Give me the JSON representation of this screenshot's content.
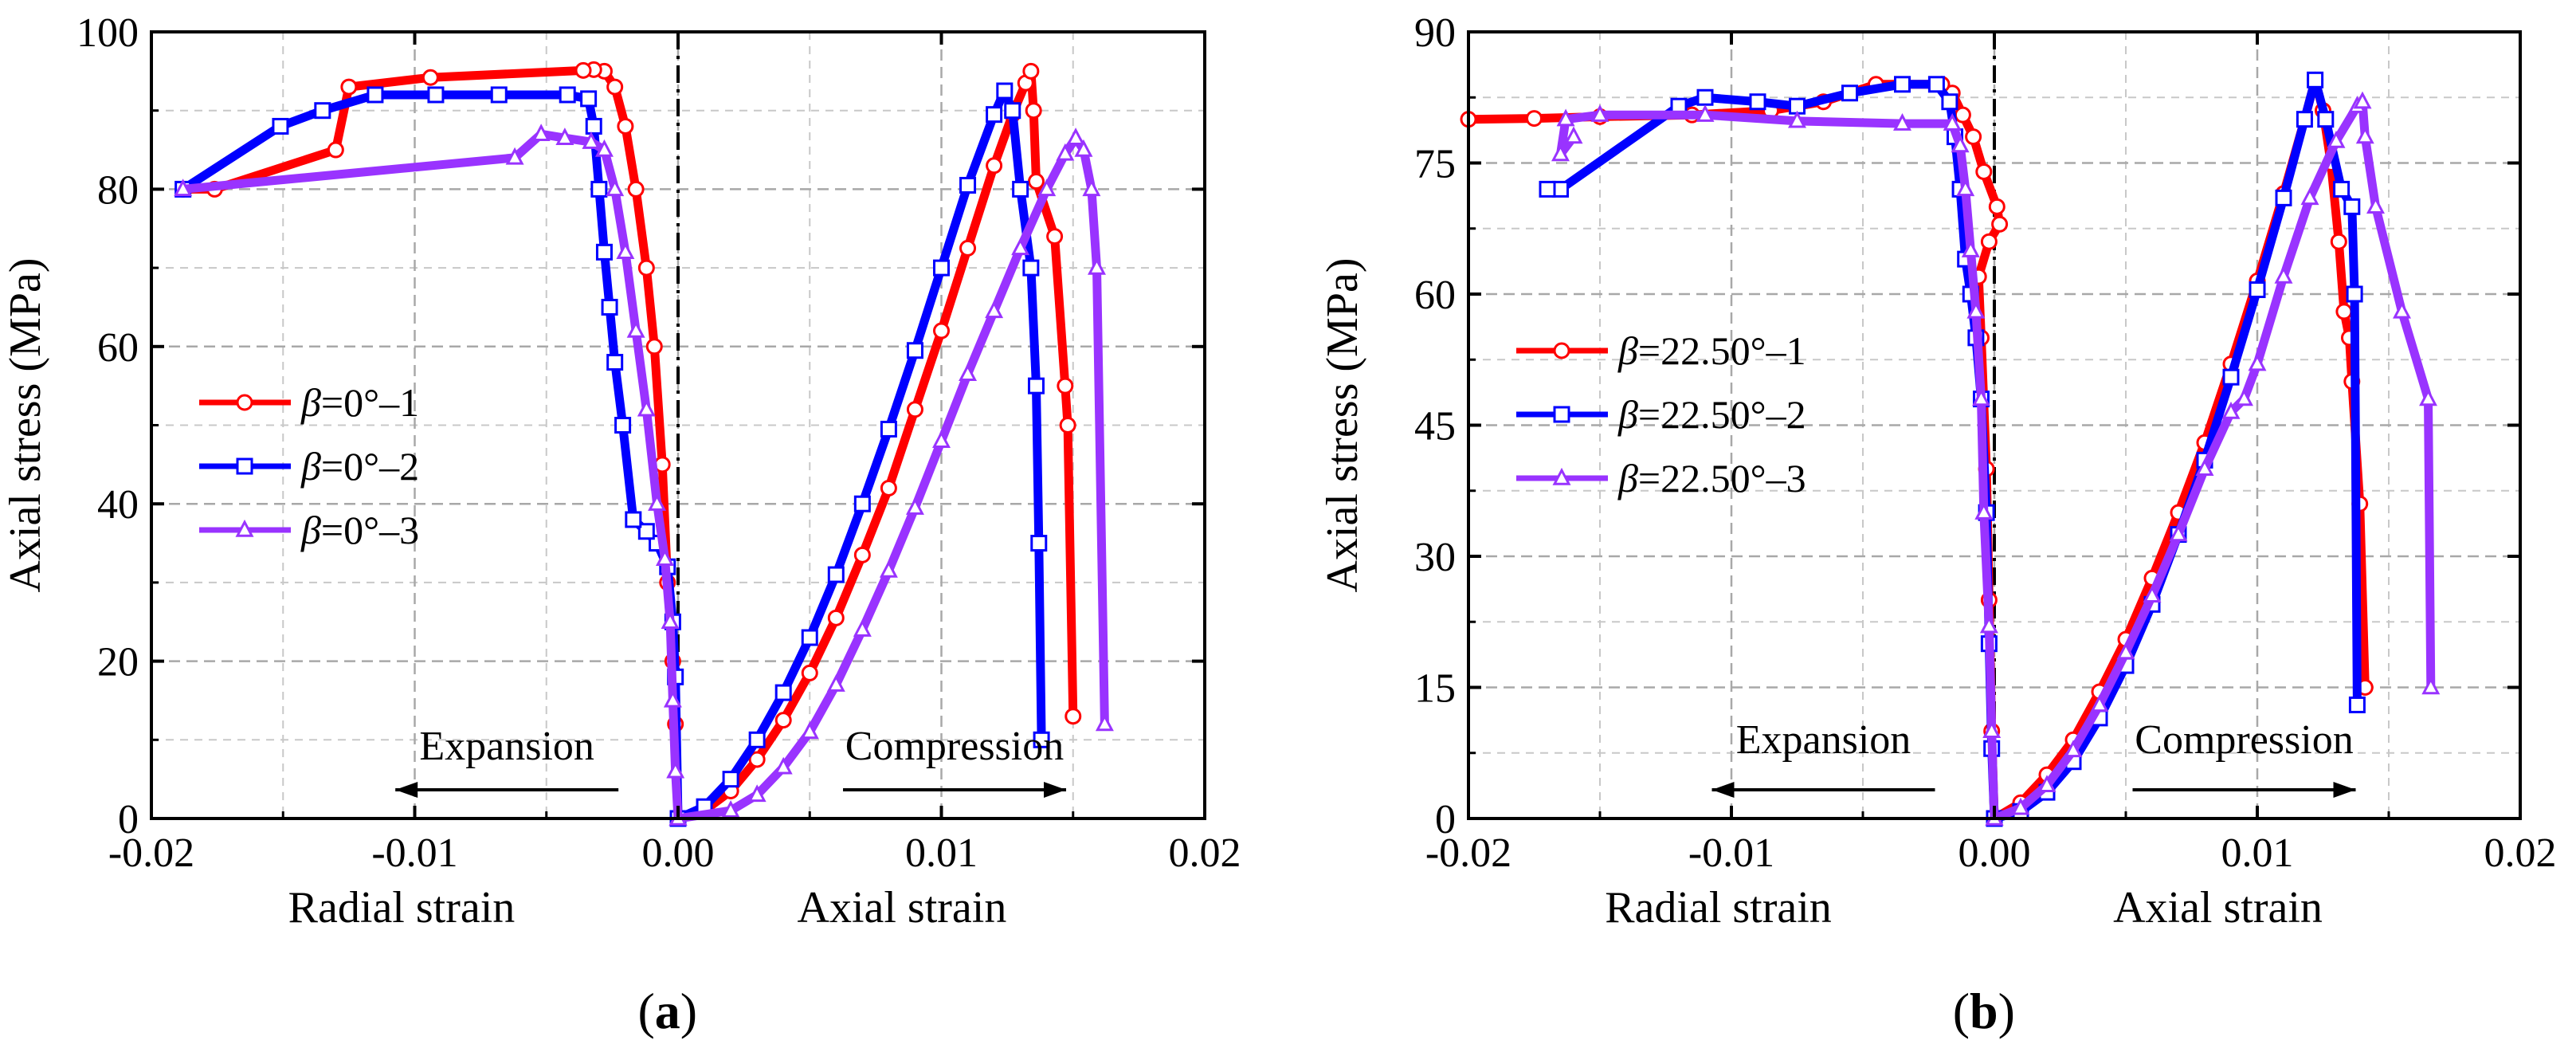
{
  "chart_data": [
    {
      "type": "line",
      "panel_label": "a",
      "ylabel": "Axial stress (MPa)",
      "xlabel_left": "Radial strain",
      "xlabel_right": "Axial strain",
      "xlim": [
        -0.02,
        0.02
      ],
      "ylim": [
        0,
        100
      ],
      "xticks": [
        -0.02,
        -0.01,
        0.0,
        0.01,
        0.02
      ],
      "xtick_labels": [
        "-0.02",
        "-0.01",
        "0.00",
        "0.01",
        "0.02"
      ],
      "yticks": [
        0,
        20,
        40,
        60,
        80,
        100
      ],
      "ytick_labels": [
        "0",
        "20",
        "40",
        "60",
        "80",
        "100"
      ],
      "grid": true,
      "legend_position": "middle-left",
      "annotations": [
        {
          "text": "Expansion",
          "arrow": "left",
          "x": -0.0065,
          "y": 7.5
        },
        {
          "text": "Compression",
          "arrow": "right",
          "x": 0.0105,
          "y": 7.5
        }
      ],
      "series": [
        {
          "name": "β=0°–1",
          "prefix": "β",
          "label": "=0°–1",
          "color": "#ff0000",
          "marker": "circle",
          "radial": [
            [
              -0.0,
              0
            ],
            [
              -0.0001,
              12
            ],
            [
              -0.0002,
              20
            ],
            [
              -0.0004,
              30
            ],
            [
              -0.0006,
              45
            ],
            [
              -0.0009,
              60
            ],
            [
              -0.0012,
              70
            ],
            [
              -0.0016,
              80
            ],
            [
              -0.002,
              88
            ],
            [
              -0.0024,
              93
            ],
            [
              -0.0028,
              95
            ],
            [
              -0.0032,
              95.2
            ],
            [
              -0.0036,
              95.1
            ],
            [
              -0.0094,
              94.2
            ],
            [
              -0.0125,
              93
            ],
            [
              -0.013,
              85
            ],
            [
              -0.0176,
              80
            ],
            [
              -0.0188,
              80
            ]
          ],
          "axial": [
            [
              0,
              0
            ],
            [
              0.001,
              1
            ],
            [
              0.002,
              3.5
            ],
            [
              0.003,
              7.5
            ],
            [
              0.004,
              12.5
            ],
            [
              0.005,
              18.5
            ],
            [
              0.006,
              25.5
            ],
            [
              0.007,
              33.5
            ],
            [
              0.008,
              42
            ],
            [
              0.009,
              52
            ],
            [
              0.01,
              62
            ],
            [
              0.011,
              72.5
            ],
            [
              0.012,
              83
            ],
            [
              0.0127,
              89.5
            ],
            [
              0.0132,
              93.5
            ],
            [
              0.0134,
              95
            ],
            [
              0.0135,
              90
            ],
            [
              0.0136,
              81
            ],
            [
              0.0143,
              74
            ],
            [
              0.0147,
              55
            ],
            [
              0.0148,
              50
            ],
            [
              0.015,
              13
            ]
          ]
        },
        {
          "name": "β=0°–2",
          "prefix": "β",
          "label": "=0°–2",
          "color": "#0000ff",
          "marker": "square",
          "radial": [
            [
              0.0,
              0
            ],
            [
              -0.0001,
              18
            ],
            [
              -0.0002,
              25
            ],
            [
              -0.0004,
              32
            ],
            [
              -0.0008,
              35
            ],
            [
              -0.0012,
              36.5
            ],
            [
              -0.0017,
              38
            ],
            [
              -0.0021,
              50
            ],
            [
              -0.0024,
              58
            ],
            [
              -0.0026,
              65
            ],
            [
              -0.0028,
              72
            ],
            [
              -0.003,
              80
            ],
            [
              -0.0032,
              88
            ],
            [
              -0.0034,
              91.5
            ],
            [
              -0.0042,
              92
            ],
            [
              -0.0068,
              92
            ],
            [
              -0.0092,
              92
            ],
            [
              -0.0115,
              92
            ],
            [
              -0.0135,
              90
            ],
            [
              -0.0151,
              88
            ],
            [
              -0.0188,
              80
            ]
          ],
          "axial": [
            [
              0,
              0
            ],
            [
              0.001,
              1.5
            ],
            [
              0.002,
              5
            ],
            [
              0.003,
              10
            ],
            [
              0.004,
              16
            ],
            [
              0.005,
              23
            ],
            [
              0.006,
              31
            ],
            [
              0.007,
              40
            ],
            [
              0.008,
              49.5
            ],
            [
              0.009,
              59.5
            ],
            [
              0.01,
              70
            ],
            [
              0.011,
              80.5
            ],
            [
              0.012,
              89.5
            ],
            [
              0.0124,
              92.5
            ],
            [
              0.0127,
              90
            ],
            [
              0.013,
              80
            ],
            [
              0.0134,
              70
            ],
            [
              0.0136,
              55
            ],
            [
              0.0137,
              35
            ],
            [
              0.0138,
              10
            ]
          ]
        },
        {
          "name": "β=0°–3",
          "prefix": "β",
          "label": "=0°–3",
          "color": "#9933ff",
          "marker": "triangle",
          "radial": [
            [
              0.0,
              0
            ],
            [
              -0.0001,
              6
            ],
            [
              -0.0002,
              15
            ],
            [
              -0.0003,
              25
            ],
            [
              -0.0005,
              33
            ],
            [
              -0.0008,
              40
            ],
            [
              -0.0012,
              52
            ],
            [
              -0.0016,
              62
            ],
            [
              -0.002,
              72
            ],
            [
              -0.0024,
              80
            ],
            [
              -0.0028,
              85
            ],
            [
              -0.0033,
              86
            ],
            [
              -0.0043,
              86.5
            ],
            [
              -0.0052,
              87
            ],
            [
              -0.0062,
              84
            ],
            [
              -0.0188,
              80
            ]
          ],
          "axial": [
            [
              0,
              0
            ],
            [
              0.002,
              1
            ],
            [
              0.003,
              3
            ],
            [
              0.004,
              6.5
            ],
            [
              0.005,
              11
            ],
            [
              0.006,
              17
            ],
            [
              0.007,
              24
            ],
            [
              0.008,
              31.5
            ],
            [
              0.009,
              39.5
            ],
            [
              0.01,
              48
            ],
            [
              0.011,
              56.5
            ],
            [
              0.012,
              64.5
            ],
            [
              0.013,
              72.5
            ],
            [
              0.014,
              80
            ],
            [
              0.0147,
              84.5
            ],
            [
              0.0151,
              86.5
            ],
            [
              0.0154,
              85
            ],
            [
              0.0157,
              80
            ],
            [
              0.0159,
              70
            ],
            [
              0.0162,
              12
            ]
          ]
        }
      ]
    },
    {
      "type": "line",
      "panel_label": "b",
      "ylabel": "Axial stress (MPa)",
      "xlabel_left": "Radial strain",
      "xlabel_right": "Axial strain",
      "xlim": [
        -0.02,
        0.02
      ],
      "ylim": [
        0,
        90
      ],
      "xticks": [
        -0.02,
        -0.01,
        0.0,
        0.01,
        0.02
      ],
      "xtick_labels": [
        "-0.02",
        "-0.01",
        "0.00",
        "0.01",
        "0.02"
      ],
      "yticks": [
        0,
        15,
        30,
        45,
        60,
        75,
        90
      ],
      "ytick_labels": [
        "0",
        "15",
        "30",
        "45",
        "60",
        "75",
        "90"
      ],
      "grid": true,
      "legend_position": "middle-left",
      "annotations": [
        {
          "text": "Expansion",
          "arrow": "left",
          "x": -0.0065,
          "y": 7.5
        },
        {
          "text": "Compression",
          "arrow": "right",
          "x": 0.0095,
          "y": 7.5
        }
      ],
      "series": [
        {
          "name": "β=22.50°–1",
          "prefix": "β",
          "label": "=22.50°–1",
          "color": "#ff0000",
          "marker": "circle",
          "radial": [
            [
              0.0,
              0
            ],
            [
              -0.0001,
              10
            ],
            [
              -0.0002,
              25
            ],
            [
              -0.0003,
              40
            ],
            [
              -0.0005,
              55
            ],
            [
              -0.0006,
              62
            ],
            [
              -0.0002,
              66
            ],
            [
              0.0002,
              68
            ],
            [
              0.0001,
              70
            ],
            [
              -0.0004,
              74
            ],
            [
              -0.0008,
              78
            ],
            [
              -0.0012,
              80.5
            ],
            [
              -0.0016,
              83
            ],
            [
              -0.002,
              84
            ],
            [
              -0.0045,
              84
            ],
            [
              -0.0065,
              82
            ],
            [
              -0.0085,
              81
            ],
            [
              -0.0115,
              80.5
            ],
            [
              -0.015,
              80.3
            ],
            [
              -0.0175,
              80.1
            ],
            [
              -0.02,
              80
            ]
          ],
          "axial": [
            [
              0,
              0
            ],
            [
              0.001,
              1.8
            ],
            [
              0.002,
              5
            ],
            [
              0.003,
              9
            ],
            [
              0.004,
              14.5
            ],
            [
              0.005,
              20.5
            ],
            [
              0.006,
              27.5
            ],
            [
              0.007,
              35
            ],
            [
              0.008,
              43
            ],
            [
              0.009,
              52
            ],
            [
              0.01,
              61.5
            ],
            [
              0.011,
              71.5
            ],
            [
              0.0118,
              80
            ],
            [
              0.0122,
              84.5
            ],
            [
              0.0125,
              81
            ],
            [
              0.0128,
              75
            ],
            [
              0.0131,
              66
            ],
            [
              0.0133,
              58
            ],
            [
              0.0135,
              55
            ],
            [
              0.0136,
              50
            ],
            [
              0.0139,
              36
            ],
            [
              0.0141,
              15
            ]
          ]
        },
        {
          "name": "β=22.50°–2",
          "prefix": "β",
          "label": "=22.50°–2",
          "color": "#0000ff",
          "marker": "square",
          "radial": [
            [
              0.0,
              0
            ],
            [
              -0.0001,
              8
            ],
            [
              -0.0002,
              20
            ],
            [
              -0.0003,
              35
            ],
            [
              -0.0005,
              48
            ],
            [
              -0.0007,
              55
            ],
            [
              -0.0009,
              60
            ],
            [
              -0.0011,
              64
            ],
            [
              -0.0013,
              72
            ],
            [
              -0.0015,
              78
            ],
            [
              -0.0017,
              82
            ],
            [
              -0.0022,
              84
            ],
            [
              -0.0035,
              84
            ],
            [
              -0.0055,
              83
            ],
            [
              -0.0075,
              81.5
            ],
            [
              -0.009,
              82
            ],
            [
              -0.011,
              82.5
            ],
            [
              -0.012,
              81.5
            ],
            [
              -0.0165,
              72
            ],
            [
              -0.017,
              72
            ]
          ],
          "axial": [
            [
              0,
              0
            ],
            [
              0.001,
              0.8
            ],
            [
              0.002,
              3
            ],
            [
              0.003,
              6.5
            ],
            [
              0.004,
              11.5
            ],
            [
              0.005,
              17.5
            ],
            [
              0.006,
              24.5
            ],
            [
              0.007,
              32.5
            ],
            [
              0.008,
              41
            ],
            [
              0.009,
              50.5
            ],
            [
              0.01,
              60.5
            ],
            [
              0.011,
              71
            ],
            [
              0.0118,
              80
            ],
            [
              0.0122,
              84.5
            ],
            [
              0.0126,
              80
            ],
            [
              0.0132,
              72
            ],
            [
              0.0136,
              70
            ],
            [
              0.0137,
              60
            ],
            [
              0.0138,
              13
            ]
          ]
        },
        {
          "name": "β=22.50°–3",
          "prefix": "β",
          "label": "=22.50°–3",
          "color": "#9933ff",
          "marker": "triangle",
          "radial": [
            [
              0.0,
              0
            ],
            [
              -0.0001,
              10
            ],
            [
              -0.0002,
              22
            ],
            [
              -0.0004,
              35
            ],
            [
              -0.0005,
              48
            ],
            [
              -0.0007,
              58
            ],
            [
              -0.0009,
              65
            ],
            [
              -0.0011,
              72
            ],
            [
              -0.0013,
              77
            ],
            [
              -0.0016,
              79.5
            ],
            [
              -0.0035,
              79.5
            ],
            [
              -0.0075,
              79.8
            ],
            [
              -0.011,
              80.5
            ],
            [
              -0.015,
              80.5
            ],
            [
              -0.0163,
              80
            ],
            [
              -0.0165,
              76
            ],
            [
              -0.016,
              78
            ]
          ],
          "axial": [
            [
              0,
              0
            ],
            [
              0.001,
              1.2
            ],
            [
              0.002,
              3.8
            ],
            [
              0.003,
              7.8
            ],
            [
              0.004,
              13
            ],
            [
              0.005,
              19
            ],
            [
              0.006,
              25.5
            ],
            [
              0.007,
              32.5
            ],
            [
              0.008,
              40
            ],
            [
              0.009,
              46.5
            ],
            [
              0.0095,
              48
            ],
            [
              0.01,
              52
            ],
            [
              0.011,
              62
            ],
            [
              0.012,
              71
            ],
            [
              0.013,
              77.5
            ],
            [
              0.0138,
              81.5
            ],
            [
              0.014,
              82
            ],
            [
              0.0141,
              78
            ],
            [
              0.0145,
              70
            ],
            [
              0.0155,
              58
            ],
            [
              0.0165,
              48
            ],
            [
              0.0166,
              15
            ]
          ]
        }
      ]
    }
  ]
}
